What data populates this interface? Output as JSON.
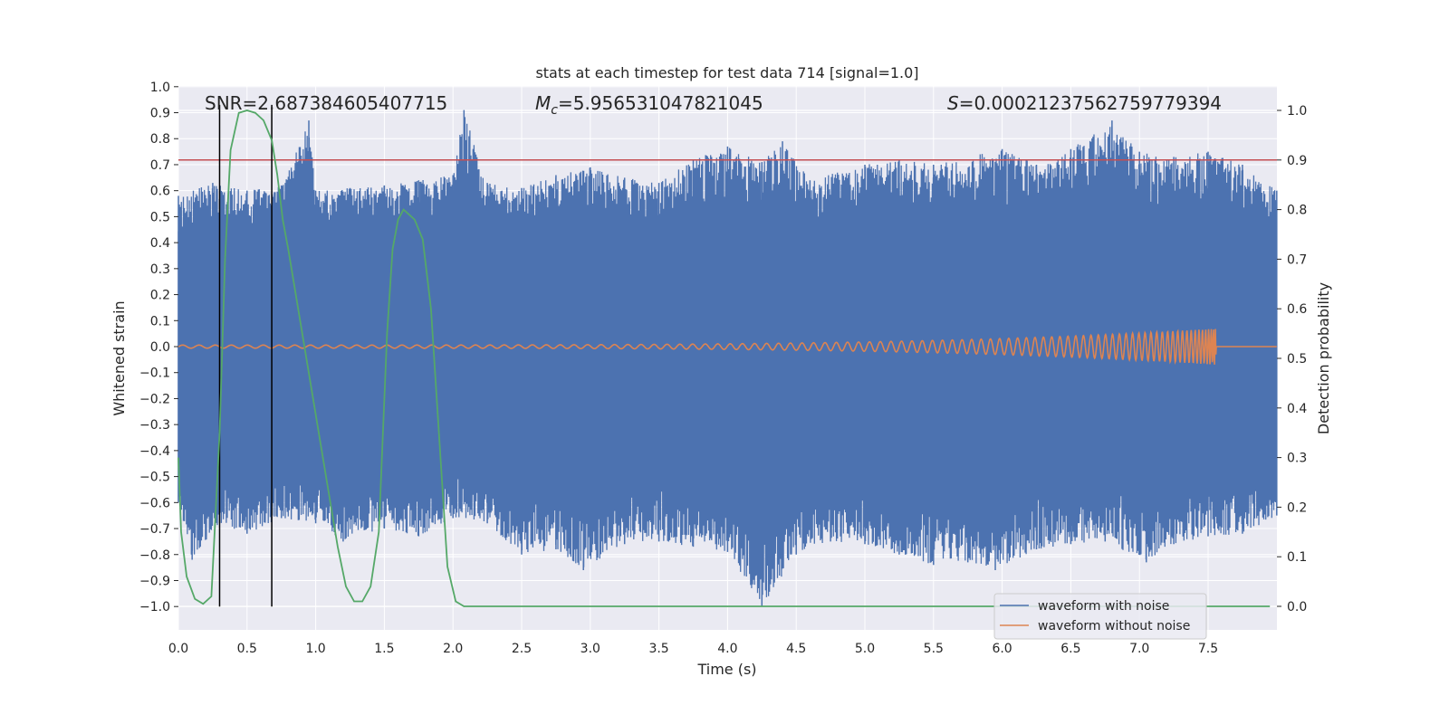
{
  "chart_data": {
    "type": "line",
    "title": "stats at each timestep for test data 714 [signal=1.0]",
    "xlabel": "Time (s)",
    "ylabel": "Whitened strain",
    "y2label": "Detection probability",
    "xlim": [
      0.0,
      8.0
    ],
    "ylim": [
      -1.09,
      1.0
    ],
    "y2lim": [
      -0.05,
      1.05
    ],
    "x_ticks": [
      "0.0",
      "0.5",
      "1.0",
      "1.5",
      "2.0",
      "2.5",
      "3.0",
      "3.5",
      "4.0",
      "4.5",
      "5.0",
      "5.5",
      "6.0",
      "6.5",
      "7.0",
      "7.5"
    ],
    "y_ticks": [
      "1.0",
      "0.9",
      "0.8",
      "0.7",
      "0.6",
      "0.5",
      "0.4",
      "0.3",
      "0.2",
      "0.1",
      "0.0",
      "-0.1",
      "-0.2",
      "-0.3",
      "-0.4",
      "-0.5",
      "-0.6",
      "-0.7",
      "-0.8",
      "-0.9",
      "-1.0"
    ],
    "y2_ticks": [
      "1.0",
      "0.9",
      "0.8",
      "0.7",
      "0.6",
      "0.5",
      "0.4",
      "0.3",
      "0.2",
      "0.1",
      "0.0"
    ],
    "grid": true,
    "legend_position": "lower-right",
    "annotations": {
      "snr": "SNR=2.687384605407715",
      "mc_symbol": "M",
      "mc_sub": "c",
      "mc_value": "=5.956531047821045",
      "s_symbol": "S",
      "s_value": "=0.00021237562759779394"
    },
    "series": [
      {
        "name": "waveform with noise",
        "color": "#4c72b0",
        "axis": "left",
        "envelope_top": [
          [
            0.0,
            0.58
          ],
          [
            0.25,
            0.63
          ],
          [
            0.5,
            0.6
          ],
          [
            0.75,
            0.62
          ],
          [
            0.95,
            0.87
          ],
          [
            1.0,
            0.6
          ],
          [
            1.25,
            0.61
          ],
          [
            1.5,
            0.62
          ],
          [
            1.75,
            0.64
          ],
          [
            2.0,
            0.66
          ],
          [
            2.08,
            0.91
          ],
          [
            2.25,
            0.63
          ],
          [
            2.5,
            0.61
          ],
          [
            2.75,
            0.66
          ],
          [
            3.0,
            0.69
          ],
          [
            3.25,
            0.65
          ],
          [
            3.5,
            0.63
          ],
          [
            3.75,
            0.72
          ],
          [
            4.0,
            0.77
          ],
          [
            4.25,
            0.71
          ],
          [
            4.4,
            0.79
          ],
          [
            4.6,
            0.64
          ],
          [
            5.0,
            0.7
          ],
          [
            5.25,
            0.72
          ],
          [
            5.5,
            0.7
          ],
          [
            6.0,
            0.76
          ],
          [
            6.25,
            0.7
          ],
          [
            6.5,
            0.76
          ],
          [
            6.8,
            0.87
          ],
          [
            7.0,
            0.75
          ],
          [
            7.25,
            0.73
          ],
          [
            7.5,
            0.75
          ],
          [
            7.75,
            0.7
          ],
          [
            8.0,
            0.6
          ]
        ],
        "envelope_bottom": [
          [
            0.0,
            -0.6
          ],
          [
            0.1,
            -0.82
          ],
          [
            0.3,
            -0.68
          ],
          [
            0.5,
            -0.72
          ],
          [
            0.75,
            -0.66
          ],
          [
            1.0,
            -0.68
          ],
          [
            1.2,
            -0.75
          ],
          [
            1.5,
            -0.7
          ],
          [
            1.75,
            -0.73
          ],
          [
            2.0,
            -0.66
          ],
          [
            2.25,
            -0.68
          ],
          [
            2.5,
            -0.8
          ],
          [
            2.75,
            -0.78
          ],
          [
            2.95,
            -0.86
          ],
          [
            3.25,
            -0.76
          ],
          [
            3.5,
            -0.75
          ],
          [
            3.75,
            -0.77
          ],
          [
            4.0,
            -0.79
          ],
          [
            4.25,
            -1.0
          ],
          [
            4.5,
            -0.8
          ],
          [
            4.75,
            -0.75
          ],
          [
            5.0,
            -0.76
          ],
          [
            5.25,
            -0.8
          ],
          [
            5.5,
            -0.84
          ],
          [
            5.75,
            -0.83
          ],
          [
            5.95,
            -0.86
          ],
          [
            6.25,
            -0.78
          ],
          [
            6.5,
            -0.76
          ],
          [
            6.75,
            -0.75
          ],
          [
            7.05,
            -0.83
          ],
          [
            7.25,
            -0.76
          ],
          [
            7.5,
            -0.73
          ],
          [
            7.75,
            -0.72
          ],
          [
            8.0,
            -0.65
          ]
        ]
      },
      {
        "name": "waveform without noise",
        "color": "#dd8452",
        "axis": "left",
        "merger_time": 7.56,
        "amplitude_start": 0.006,
        "amplitude_end": 0.07
      },
      {
        "name": "",
        "color": "#55a868",
        "axis": "right",
        "x": [
          0.0,
          0.02,
          0.06,
          0.12,
          0.18,
          0.24,
          0.3,
          0.34,
          0.38,
          0.44,
          0.5,
          0.56,
          0.62,
          0.68,
          0.72,
          0.76,
          0.8,
          0.86,
          0.92,
          0.98,
          1.04,
          1.1,
          1.16,
          1.22,
          1.28,
          1.34,
          1.4,
          1.46,
          1.52,
          1.56,
          1.6,
          1.64,
          1.68,
          1.72,
          1.78,
          1.84,
          1.9,
          1.96,
          2.02,
          2.08,
          2.14,
          2.2,
          3.0,
          4.0,
          5.0,
          6.0,
          7.0,
          7.95
        ],
        "y": [
          0.3,
          0.15,
          0.06,
          0.015,
          0.005,
          0.02,
          0.35,
          0.7,
          0.92,
          0.995,
          1.0,
          0.995,
          0.98,
          0.94,
          0.87,
          0.78,
          0.72,
          0.62,
          0.52,
          0.42,
          0.32,
          0.22,
          0.12,
          0.04,
          0.01,
          0.01,
          0.04,
          0.15,
          0.55,
          0.72,
          0.78,
          0.8,
          0.79,
          0.78,
          0.74,
          0.6,
          0.34,
          0.08,
          0.01,
          0.0,
          0.0,
          0.0,
          0.0,
          0.0,
          0.0,
          0.0,
          0.0,
          0.0
        ]
      }
    ],
    "threshold_line": {
      "value": 0.9,
      "axis": "right",
      "color": "#c44e52"
    },
    "vertical_markers": [
      0.3,
      0.68
    ],
    "vertical_marker_top": 0.93,
    "vertical_marker_bottom": -1.0,
    "vertical_marker_color": "#000000"
  }
}
